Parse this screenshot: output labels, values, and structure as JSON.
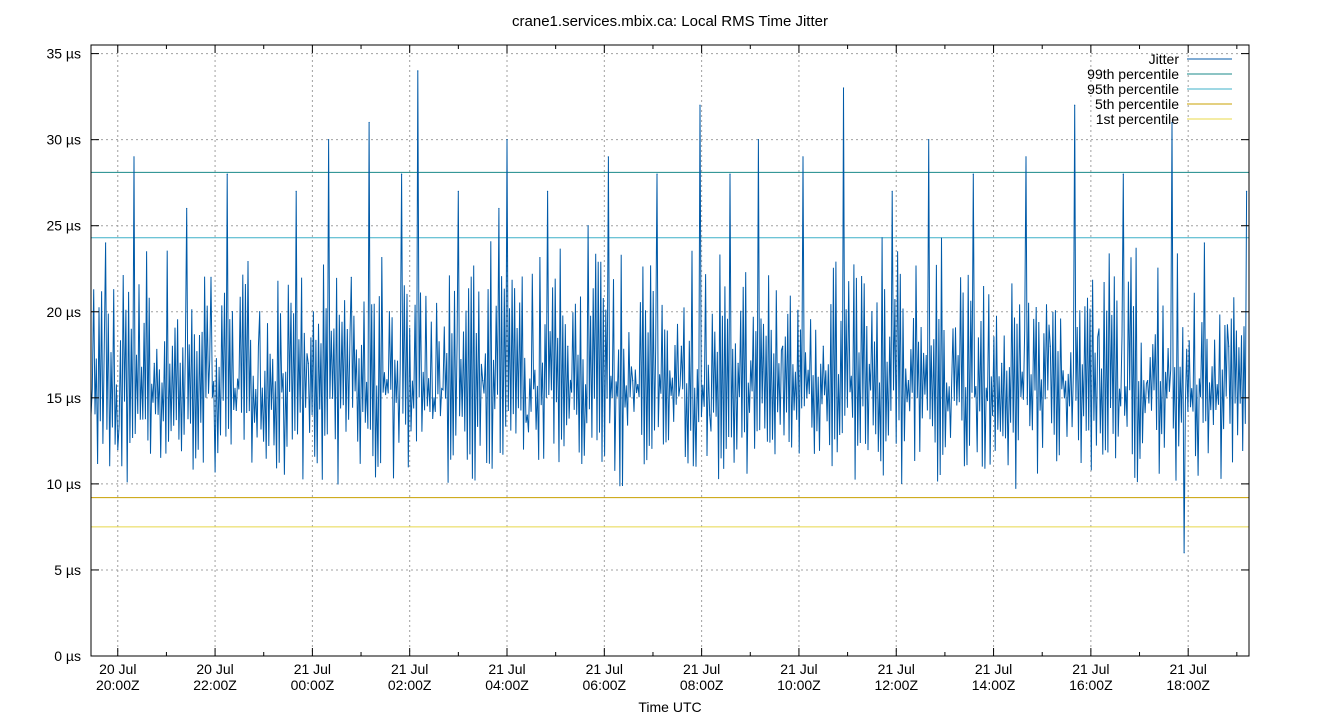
{
  "chart_data": {
    "type": "line",
    "title": "crane1.services.mbix.ca: Local RMS Time Jitter",
    "xlabel": "Time UTC",
    "ylabel": "",
    "y_unit": "µs",
    "ylim": [
      0,
      35.5
    ],
    "xlim": [
      "2024-07-20T19:27Z",
      "2024-07-21T19:15Z"
    ],
    "yticks": [
      {
        "value": 0,
        "label": "0 µs"
      },
      {
        "value": 5,
        "label": "5 µs"
      },
      {
        "value": 10,
        "label": "10 µs"
      },
      {
        "value": 15,
        "label": "15 µs"
      },
      {
        "value": 20,
        "label": "20 µs"
      },
      {
        "value": 25,
        "label": "25 µs"
      },
      {
        "value": 30,
        "label": "30 µs"
      },
      {
        "value": 35,
        "label": "35 µs"
      }
    ],
    "xticks": [
      {
        "value": "2024-07-20T20:00Z",
        "label1": "20 Jul",
        "label2": "20:00Z"
      },
      {
        "value": "2024-07-20T22:00Z",
        "label1": "20 Jul",
        "label2": "22:00Z"
      },
      {
        "value": "2024-07-21T00:00Z",
        "label1": "21 Jul",
        "label2": "00:00Z"
      },
      {
        "value": "2024-07-21T02:00Z",
        "label1": "21 Jul",
        "label2": "02:00Z"
      },
      {
        "value": "2024-07-21T04:00Z",
        "label1": "21 Jul",
        "label2": "04:00Z"
      },
      {
        "value": "2024-07-21T06:00Z",
        "label1": "21 Jul",
        "label2": "06:00Z"
      },
      {
        "value": "2024-07-21T08:00Z",
        "label1": "21 Jul",
        "label2": "08:00Z"
      },
      {
        "value": "2024-07-21T10:00Z",
        "label1": "21 Jul",
        "label2": "10:00Z"
      },
      {
        "value": "2024-07-21T12:00Z",
        "label1": "21 Jul",
        "label2": "12:00Z"
      },
      {
        "value": "2024-07-21T14:00Z",
        "label1": "21 Jul",
        "label2": "14:00Z"
      },
      {
        "value": "2024-07-21T16:00Z",
        "label1": "21 Jul",
        "label2": "16:00Z"
      },
      {
        "value": "2024-07-21T18:00Z",
        "label1": "21 Jul",
        "label2": "18:00Z"
      }
    ],
    "grid": true,
    "legend_position": "top-right",
    "series": [
      {
        "name": "Jitter",
        "color": "#005aa8",
        "x": [
          "2024-07-20T19:27Z",
          "2024-07-20T19:45Z",
          "2024-07-20T20:00Z",
          "2024-07-20T20:20Z",
          "2024-07-20T20:45Z",
          "2024-07-20T21:25Z",
          "2024-07-20T21:55Z",
          "2024-07-20T22:15Z",
          "2024-07-20T22:55Z",
          "2024-07-20T23:40Z",
          "2024-07-20T23:55Z",
          "2024-07-21T00:20Z",
          "2024-07-21T00:48Z",
          "2024-07-21T01:10Z",
          "2024-07-21T01:35Z",
          "2024-07-21T01:50Z",
          "2024-07-21T02:10Z",
          "2024-07-21T02:30Z",
          "2024-07-21T03:00Z",
          "2024-07-21T03:30Z",
          "2024-07-21T03:50Z",
          "2024-07-21T04:00Z",
          "2024-07-21T04:25Z",
          "2024-07-21T04:50Z",
          "2024-07-21T05:15Z",
          "2024-07-21T05:40Z",
          "2024-07-21T06:05Z",
          "2024-07-21T06:35Z",
          "2024-07-21T07:05Z",
          "2024-07-21T07:35Z",
          "2024-07-21T07:58Z",
          "2024-07-21T08:10Z",
          "2024-07-21T08:35Z",
          "2024-07-21T08:45Z",
          "2024-07-21T09:10Z",
          "2024-07-21T09:40Z",
          "2024-07-21T10:05Z",
          "2024-07-21T10:30Z",
          "2024-07-21T10:55Z",
          "2024-07-21T11:30Z",
          "2024-07-21T11:55Z",
          "2024-07-21T12:15Z",
          "2024-07-21T12:40Z",
          "2024-07-21T13:10Z",
          "2024-07-21T13:35Z",
          "2024-07-21T14:10Z",
          "2024-07-21T14:40Z",
          "2024-07-21T15:10Z",
          "2024-07-21T15:40Z",
          "2024-07-21T16:10Z",
          "2024-07-21T16:40Z",
          "2024-07-21T17:10Z",
          "2024-07-21T17:40Z",
          "2024-07-21T17:55Z",
          "2024-07-21T18:20Z",
          "2024-07-21T18:50Z",
          "2024-07-21T19:12Z"
        ],
        "y": [
          14,
          24,
          12,
          29,
          17,
          26,
          22,
          28,
          20,
          27,
          17,
          30,
          22,
          31,
          20,
          28,
          34,
          15,
          27,
          16,
          26,
          30,
          14,
          27,
          18,
          25,
          29,
          16,
          28,
          18,
          32,
          14,
          28,
          17,
          30,
          18,
          29,
          18,
          33,
          20,
          27,
          16,
          30,
          19,
          28,
          17,
          29,
          18,
          32,
          19,
          28,
          16,
          31,
          6,
          24,
          18,
          27
        ]
      },
      {
        "name": "99th percentile",
        "color": "#1a8a8a",
        "value": 28.1
      },
      {
        "name": "95th percentile",
        "color": "#3fb0c8",
        "value": 24.3
      },
      {
        "name": "5th percentile",
        "color": "#c8a000",
        "value": 9.2
      },
      {
        "name": "1st percentile",
        "color": "#e8d84a",
        "value": 7.5
      }
    ]
  }
}
